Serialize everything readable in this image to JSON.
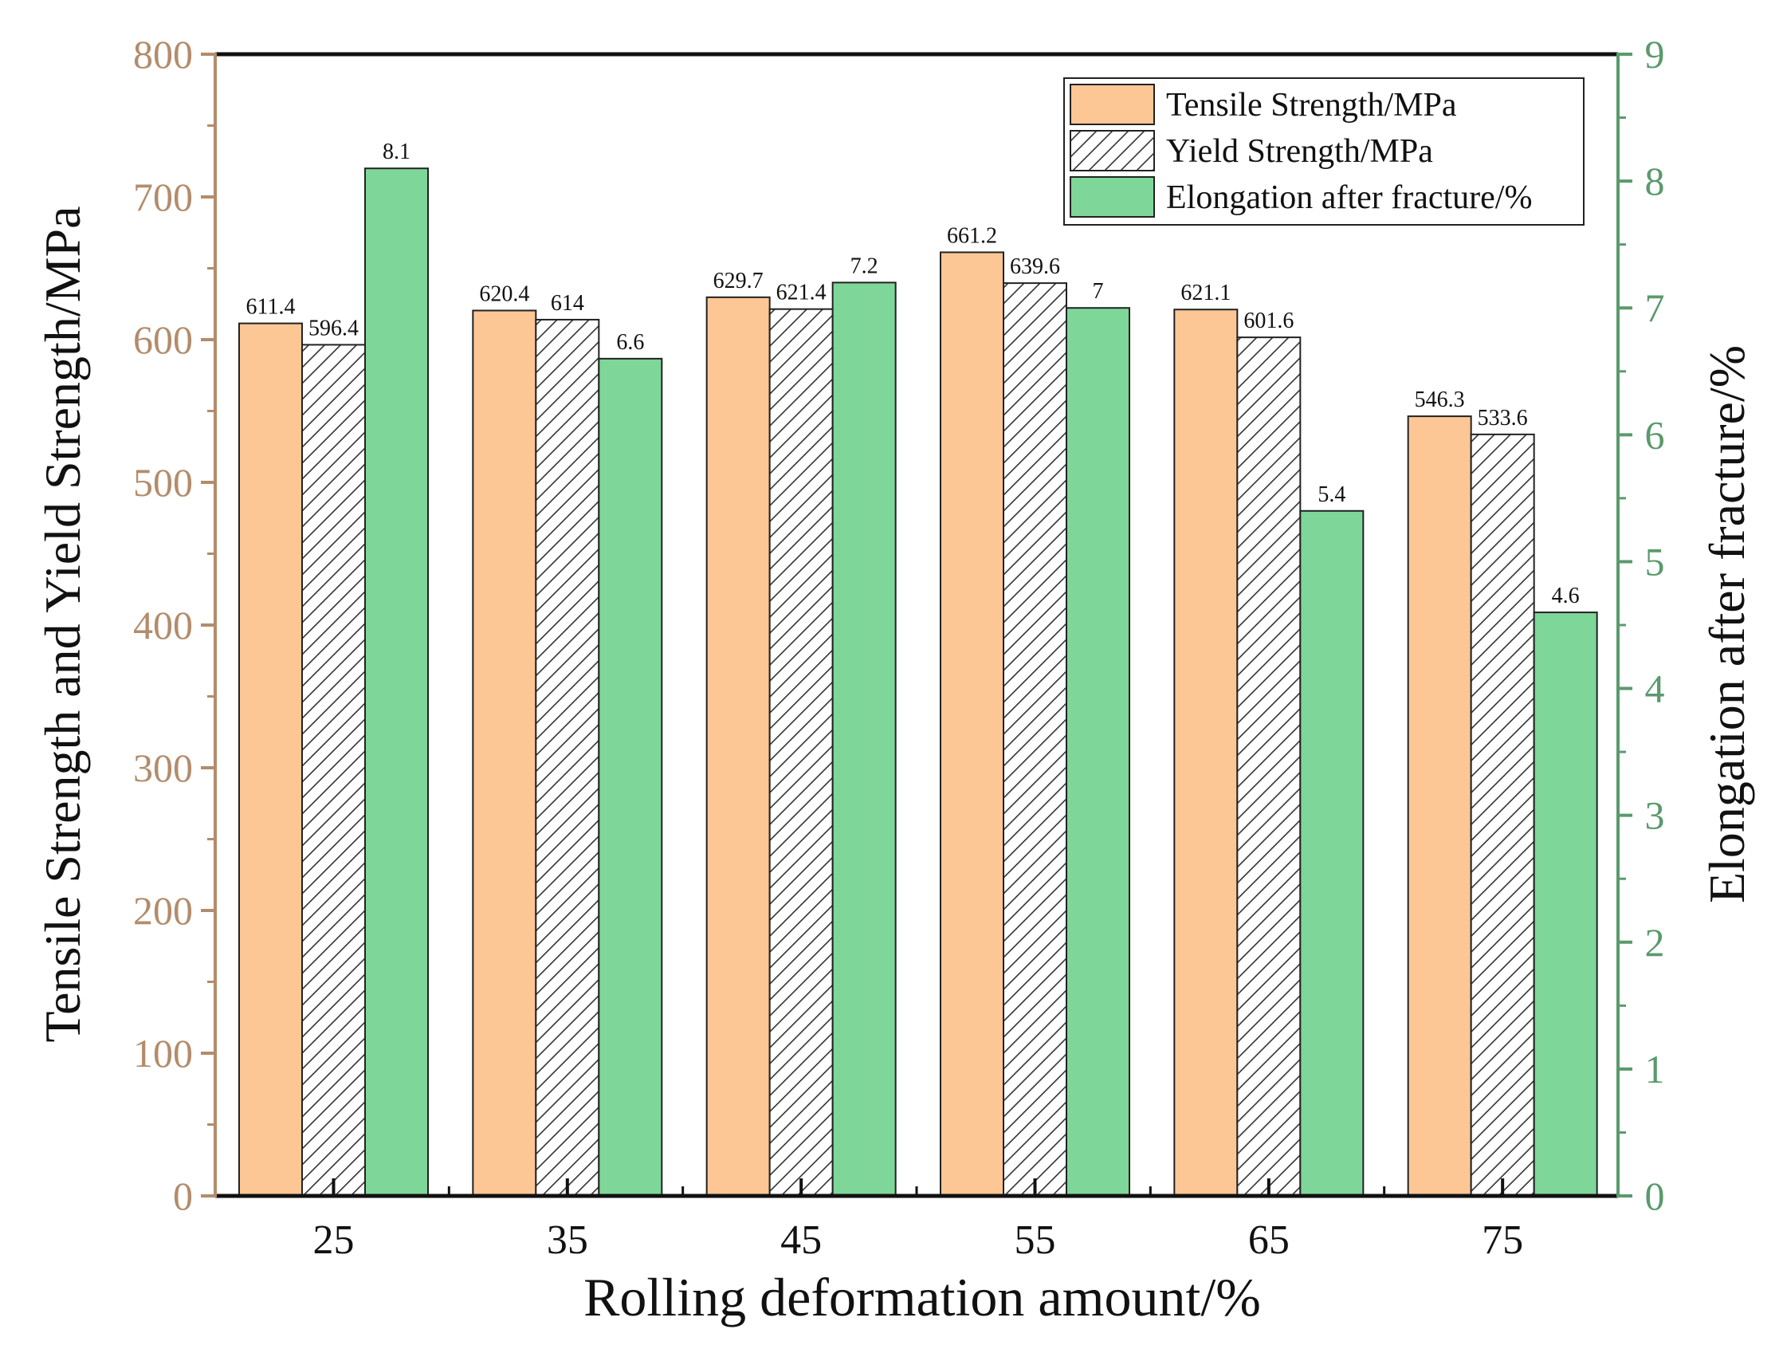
{
  "chart_data": {
    "type": "bar",
    "xlabel": "Rolling deformation amount/%",
    "ylabel_left": "Tensile Strength and Yield Strength/MPa",
    "ylabel_right": "Elongation after fracture/%",
    "categories": [
      "25",
      "35",
      "45",
      "55",
      "65",
      "75"
    ],
    "ylim_left": [
      0,
      800
    ],
    "yticks_left": [
      "0",
      "100",
      "200",
      "300",
      "400",
      "500",
      "600",
      "700",
      "800"
    ],
    "ylim_right": [
      0,
      9
    ],
    "yticks_right": [
      "0",
      "1",
      "2",
      "3",
      "4",
      "5",
      "6",
      "7",
      "8",
      "9"
    ],
    "series": [
      {
        "name": "Tensile Strength/MPa",
        "axis": "left",
        "fill": "solid",
        "values": [
          611.4,
          620.4,
          629.7,
          661.2,
          621.1,
          546.3
        ],
        "labels": [
          "611.4",
          "620.4",
          "629.7",
          "661.2",
          "621.1",
          "546.3"
        ]
      },
      {
        "name": "Yield Strength/MPa",
        "axis": "left",
        "fill": "hatched",
        "values": [
          596.4,
          614,
          621.4,
          639.6,
          601.6,
          533.6
        ],
        "labels": [
          "596.4",
          "614",
          "621.4",
          "639.6",
          "601.6",
          "533.6"
        ]
      },
      {
        "name": "Elongation after fracture/%",
        "axis": "right",
        "fill": "solid",
        "values": [
          8.1,
          6.6,
          7.2,
          7,
          5.4,
          4.6
        ],
        "labels": [
          "8.1",
          "6.6",
          "7.2",
          "7",
          "5.4",
          "4.6"
        ]
      }
    ],
    "legend_position": "top-right",
    "grid": false
  },
  "colors": {
    "tensile": "#FDC795",
    "yield_hatch": "#333333",
    "elongation": "#7FD699",
    "left_axis": "#B38C6B",
    "right_axis": "#5A9A6C",
    "frame": "#111111"
  }
}
